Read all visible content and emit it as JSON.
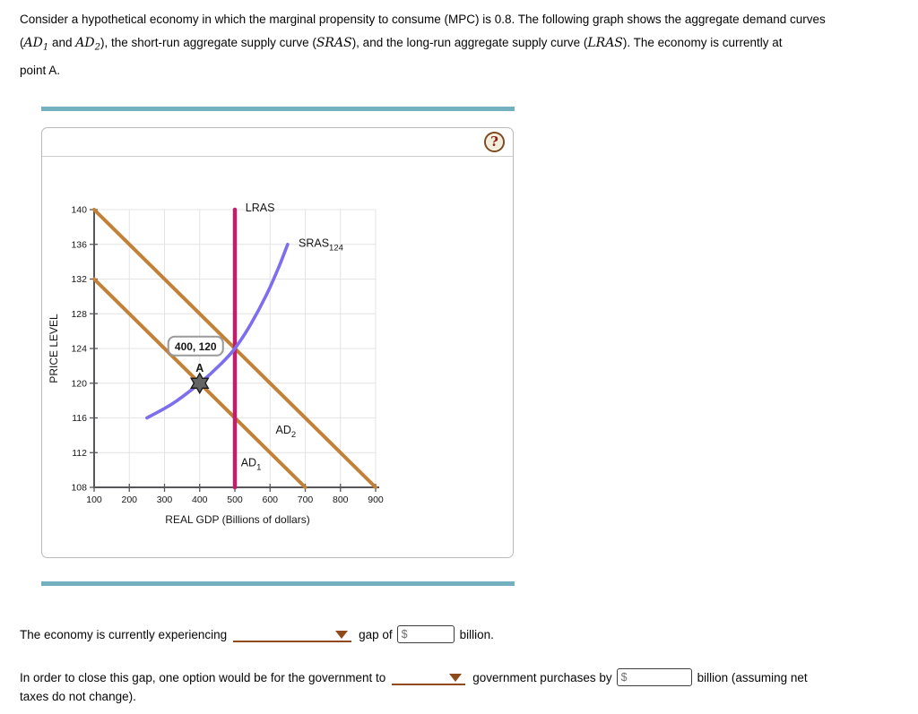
{
  "intro": {
    "line1": "Consider a hypothetical economy in which the marginal propensity to consume (MPC) is 0.8. The following graph shows the aggregate demand curves",
    "line2": {
      "t1": "(",
      "ad1": "AD",
      "ad1_sub": "1",
      "t2": " and ",
      "ad2": "AD",
      "ad2_sub": "2",
      "t3": "), the short-run aggregate supply curve (",
      "sras": "SRAS",
      "t4": "), and the long-run aggregate supply curve (",
      "lras": "LRAS",
      "t5": "). The economy is currently at"
    },
    "line3": "point A."
  },
  "panel": {
    "help": "?"
  },
  "chart_data": {
    "type": "line",
    "title": "",
    "xlabel": "REAL GDP (Billions of dollars)",
    "ylabel": "PRICE LEVEL",
    "xlim": [
      100,
      900
    ],
    "ylim": [
      108,
      140
    ],
    "xticks": [
      100,
      200,
      300,
      400,
      500,
      600,
      700,
      800,
      900
    ],
    "yticks": [
      108,
      112,
      116,
      120,
      124,
      128,
      132,
      136,
      140
    ],
    "grid": true,
    "legend_position": "none",
    "series": [
      {
        "name": "AD1",
        "label": "AD",
        "sub": "1",
        "color": "#c28136",
        "width": 4,
        "smooth": false,
        "points": [
          [
            100,
            132
          ],
          [
            700,
            108
          ]
        ],
        "label_pos": [
          517,
          110.4
        ]
      },
      {
        "name": "AD2",
        "label": "AD",
        "sub": "2",
        "color": "#c28136",
        "width": 4,
        "smooth": false,
        "points": [
          [
            100,
            140
          ],
          [
            900,
            108
          ]
        ],
        "label_pos": [
          616,
          114.2
        ]
      },
      {
        "name": "LRAS",
        "label": "LRAS",
        "sub": "",
        "color": "#c01d6d",
        "width": 4.5,
        "smooth": false,
        "points": [
          [
            500,
            108
          ],
          [
            500,
            140
          ]
        ],
        "label_pos": [
          530,
          139.8
        ]
      },
      {
        "name": "SRAS",
        "label": "SRAS",
        "sub": "124",
        "color": "#7d6ef0",
        "width": 3.6,
        "smooth": true,
        "points": [
          [
            250,
            116
          ],
          [
            325,
            117.7
          ],
          [
            400,
            120
          ],
          [
            460,
            122.2
          ],
          [
            500,
            124
          ],
          [
            545,
            126.8
          ],
          [
            590,
            130.2
          ],
          [
            625,
            133.4
          ],
          [
            650,
            136
          ]
        ],
        "label_pos": [
          681,
          135.7
        ]
      }
    ],
    "point": {
      "label": "A",
      "x": 400,
      "y": 120,
      "tooltip": "400, 120"
    }
  },
  "q1": {
    "text1": "The economy is currently experiencing",
    "dropdown_value": "",
    "text2": "gap of",
    "input_prefix": "$",
    "input_value": "",
    "text3": "billion."
  },
  "q2": {
    "text1": "In order to close this gap, one option would be for the government to",
    "dropdown_value": "",
    "text2": "government purchases by",
    "input_prefix": "$",
    "input_value": "",
    "text3": "billion (assuming net",
    "line2": "taxes do not change)."
  },
  "colors": {
    "divider_teal": "#73b1c0",
    "dropdown_brown": "#8f4a1c",
    "help_ring_brown": "#7d4a1e",
    "help_glyph_maroon": "#8b1a10",
    "ad_curve": "#c28136",
    "lras_curve": "#c01d6d",
    "sras_curve": "#7d6ef0"
  }
}
